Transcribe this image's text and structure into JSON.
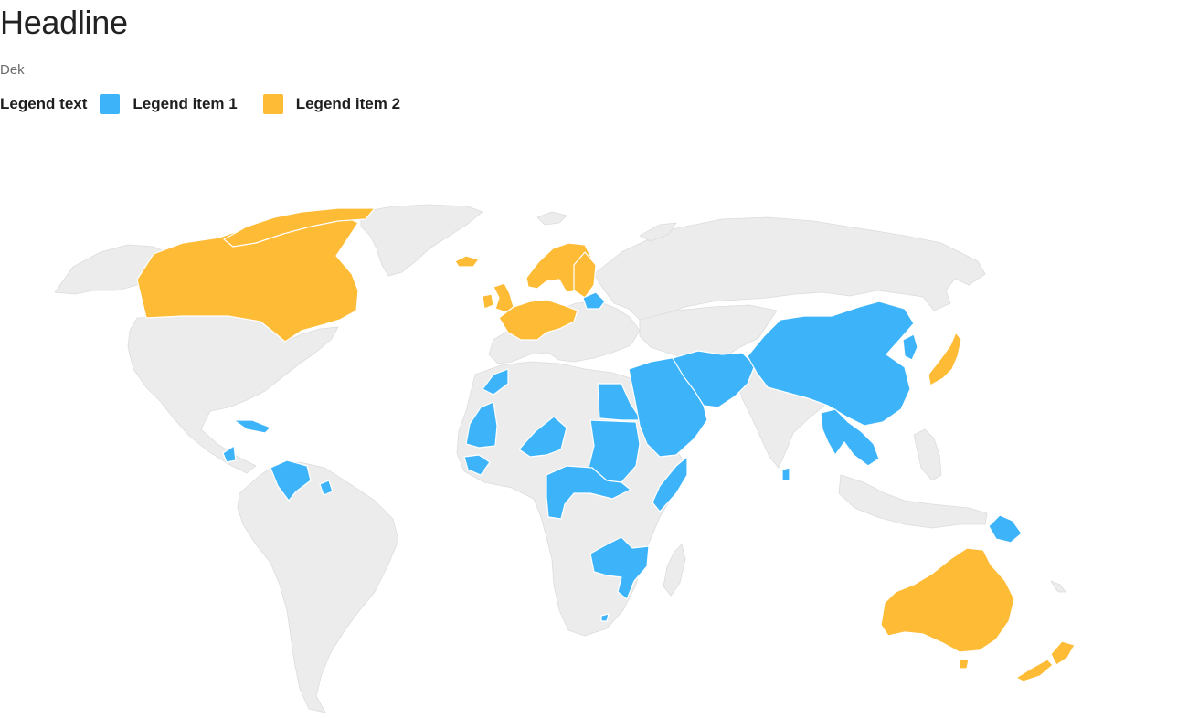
{
  "header": {
    "title": "Headline",
    "dek": "Dek"
  },
  "legend": {
    "title": "Legend text",
    "items": [
      {
        "label": "Legend item 1",
        "color": "#3db4fa"
      },
      {
        "label": "Legend item 2",
        "color": "#fdbb36"
      }
    ]
  },
  "map": {
    "base_color": "#ececec",
    "border_color": "#ffffff",
    "groups": {
      "legend_item_1": [
        "Belarus",
        "Mauritania",
        "Western Sahara",
        "Mali",
        "Niger",
        "Senegal",
        "Guinea",
        "Liberia",
        "Sierra Leone",
        "Egypt",
        "Sudan",
        "South Sudan",
        "Chad",
        "Cameroon",
        "Central African Republic",
        "Congo",
        "Gabon",
        "Equatorial Guinea",
        "Somalia",
        "Kenya",
        "Zambia",
        "Malawi",
        "Mozambique",
        "Tanzania",
        "Lesotho",
        "Israel",
        "Lebanon",
        "Syria",
        "Iraq",
        "Jordan",
        "Saudi Arabia",
        "Kuwait",
        "Qatar",
        "United Arab Emirates",
        "Oman",
        "Yemen",
        "Iran",
        "Afghanistan",
        "Pakistan",
        "China",
        "North Korea",
        "South Korea",
        "Myanmar",
        "Laos",
        "Thailand",
        "Cambodia",
        "Vietnam",
        "Sri Lanka",
        "Papua New Guinea",
        "Cuba",
        "Haiti",
        "Dominican Republic",
        "Jamaica",
        "Nicaragua",
        "Venezuela",
        "Suriname"
      ],
      "legend_item_2": [
        "Canada",
        "Greenland (coast)",
        "Iceland",
        "United Kingdom",
        "Ireland",
        "France",
        "Belgium",
        "Netherlands",
        "Germany",
        "Denmark",
        "Norway",
        "Sweden",
        "Finland",
        "Estonia",
        "Latvia",
        "Lithuania",
        "Switzerland",
        "Austria",
        "Czech Republic",
        "Japan",
        "Australia",
        "New Zealand"
      ]
    }
  }
}
